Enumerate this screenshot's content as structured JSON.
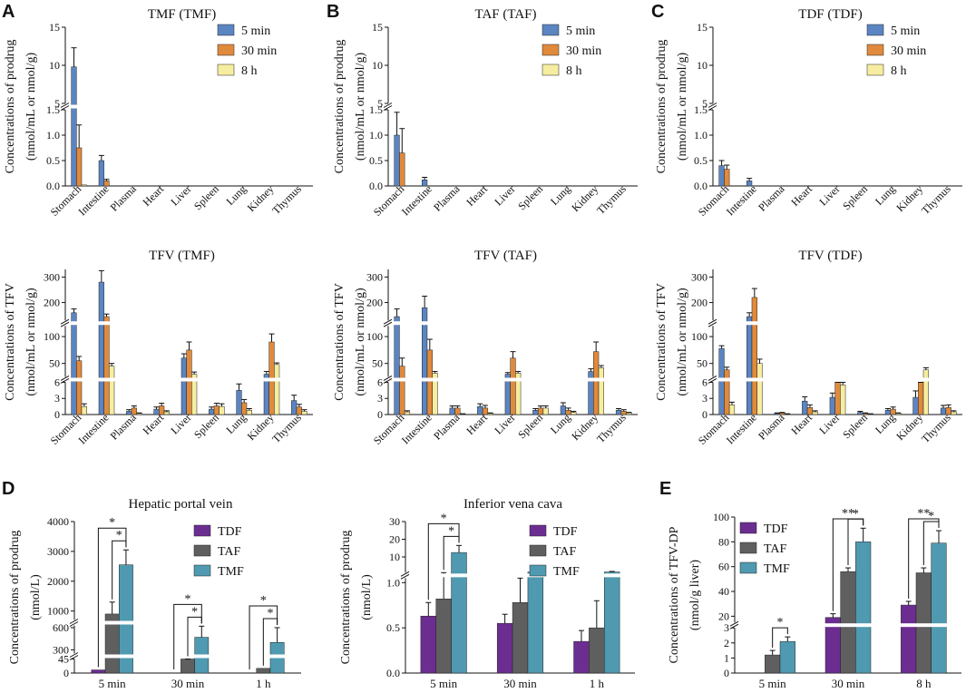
{
  "figure": {
    "panel_letters": [
      "A",
      "B",
      "C",
      "D",
      "E"
    ],
    "organ_categories": [
      "Stomach",
      "Intestine",
      "Plasma",
      "Heart",
      "Liver",
      "Spleen",
      "Lung",
      "Kidney",
      "Thymus"
    ],
    "time_legend": [
      "5 min",
      "30 min",
      "8 h"
    ],
    "drug_legend": [
      "TDF",
      "TAF",
      "TMF"
    ]
  },
  "chart_data": [
    {
      "id": "A1",
      "type": "bar",
      "title": "TMF (TMF)",
      "ylabel": [
        "Concentrations of prodrug",
        "(nmol/mL or nmol/g)"
      ],
      "y_segments": [
        [
          0,
          1.5
        ],
        [
          5,
          15
        ]
      ],
      "y_ticks": [
        [
          0,
          0.5,
          1.0,
          1.5
        ],
        [
          5,
          10,
          15
        ]
      ],
      "y_tick_labels": [
        [
          "0.0",
          "0.5",
          "1.0",
          "1.5"
        ],
        [
          "5",
          "10",
          "15"
        ]
      ],
      "categories": [
        "Stomach",
        "Intestine",
        "Plasma",
        "Heart",
        "Liver",
        "Spleen",
        "Lung",
        "Kidney",
        "Thymus"
      ],
      "series": [
        {
          "name": "5 min",
          "values": [
            9.8,
            0.5,
            0,
            0,
            0,
            0,
            0,
            0,
            0
          ],
          "errors": [
            2.5,
            0.1,
            0,
            0,
            0,
            0,
            0,
            0,
            0
          ]
        },
        {
          "name": "30 min",
          "values": [
            0.75,
            0.1,
            0,
            0,
            0,
            0,
            0,
            0,
            0
          ],
          "errors": [
            0.45,
            0.03,
            0,
            0,
            0,
            0,
            0,
            0,
            0
          ]
        },
        {
          "name": "8 h",
          "values": [
            0.02,
            0,
            0,
            0,
            0,
            0,
            0,
            0,
            0
          ],
          "errors": [
            0,
            0,
            0,
            0,
            0,
            0,
            0,
            0,
            0
          ]
        }
      ]
    },
    {
      "id": "B1",
      "type": "bar",
      "title": "TAF (TAF)",
      "ylabel": [
        "Concentrations of prodrug",
        "(nmol/mL or nmol/g)"
      ],
      "y_segments": [
        [
          0,
          1.5
        ],
        [
          5,
          15
        ]
      ],
      "y_ticks": [
        [
          0,
          0.5,
          1.0,
          1.5
        ],
        [
          5,
          10,
          15
        ]
      ],
      "y_tick_labels": [
        [
          "0.0",
          "0.5",
          "1.0",
          "1.5"
        ],
        [
          "5",
          "10",
          "15"
        ]
      ],
      "categories": [
        "Stomach",
        "Intestine",
        "Plasma",
        "Heart",
        "Liver",
        "Spleen",
        "Lung",
        "Kidney",
        "Thymus"
      ],
      "series": [
        {
          "name": "5 min",
          "values": [
            1.0,
            0.12,
            0,
            0,
            0,
            0,
            0,
            0,
            0
          ],
          "errors": [
            0.45,
            0.05,
            0,
            0,
            0,
            0,
            0,
            0,
            0
          ]
        },
        {
          "name": "30 min",
          "values": [
            0.65,
            0,
            0,
            0,
            0,
            0,
            0,
            0,
            0
          ],
          "errors": [
            0.48,
            0,
            0,
            0,
            0,
            0,
            0,
            0,
            0
          ]
        },
        {
          "name": "8 h",
          "values": [
            0,
            0,
            0,
            0,
            0,
            0,
            0,
            0,
            0
          ],
          "errors": [
            0,
            0,
            0,
            0,
            0,
            0,
            0,
            0,
            0
          ]
        }
      ]
    },
    {
      "id": "C1",
      "type": "bar",
      "title": "TDF (TDF)",
      "ylabel": [
        "Concentrations of prodrug",
        "(nmol/mL or nmol/g)"
      ],
      "y_segments": [
        [
          0,
          1.5
        ],
        [
          5,
          15
        ]
      ],
      "y_ticks": [
        [
          0,
          0.5,
          1.0,
          1.5
        ],
        [
          5,
          10,
          15
        ]
      ],
      "y_tick_labels": [
        [
          "0.0",
          "0.5",
          "1.0",
          "1.5"
        ],
        [
          "5",
          "10",
          "15"
        ]
      ],
      "categories": [
        "Stomach",
        "Intestine",
        "Plasma",
        "Heart",
        "Liver",
        "Spleen",
        "Lung",
        "Kidney",
        "Thymus"
      ],
      "series": [
        {
          "name": "5 min",
          "values": [
            0.4,
            0.1,
            0,
            0,
            0,
            0,
            0,
            0,
            0
          ],
          "errors": [
            0.1,
            0.05,
            0,
            0,
            0,
            0,
            0,
            0,
            0
          ]
        },
        {
          "name": "30 min",
          "values": [
            0.33,
            0,
            0,
            0,
            0,
            0,
            0,
            0,
            0
          ],
          "errors": [
            0.08,
            0,
            0,
            0,
            0,
            0,
            0,
            0,
            0
          ]
        },
        {
          "name": "8 h",
          "values": [
            0,
            0,
            0,
            0,
            0,
            0,
            0,
            0,
            0
          ],
          "errors": [
            0,
            0,
            0,
            0,
            0,
            0,
            0,
            0,
            0
          ]
        }
      ]
    },
    {
      "id": "A2",
      "type": "bar",
      "title": "TFV (TMF)",
      "ylabel": [
        "Concentrations of TFV",
        "(nmol/mL or nmol/g)"
      ],
      "y_segments": [
        [
          0,
          6
        ],
        [
          25,
          120
        ],
        [
          130,
          330
        ]
      ],
      "y_ticks": [
        [
          0,
          3,
          6
        ],
        [
          50,
          100
        ],
        [
          200,
          300
        ]
      ],
      "y_tick_labels": [
        [
          "0",
          "3",
          "6"
        ],
        [
          "50",
          "100"
        ],
        [
          "200",
          "300"
        ]
      ],
      "categories": [
        "Stomach",
        "Intestine",
        "Plasma",
        "Heart",
        "Liver",
        "Spleen",
        "Lung",
        "Kidney",
        "Thymus"
      ],
      "series": [
        {
          "name": "5 min",
          "values": [
            160,
            280,
            0.6,
            1.0,
            60,
            1.0,
            4.5,
            30,
            2.6
          ],
          "errors": [
            15,
            45,
            0.3,
            0.4,
            8,
            0.4,
            1.2,
            5,
            1.0
          ]
        },
        {
          "name": "30 min",
          "values": [
            55,
            145,
            1.2,
            1.6,
            75,
            1.6,
            2.2,
            90,
            1.4
          ],
          "errors": [
            8,
            10,
            0.4,
            0.5,
            15,
            0.5,
            0.6,
            15,
            0.5
          ]
        },
        {
          "name": "8 h",
          "values": [
            1.5,
            45,
            0.2,
            0.5,
            30,
            1.5,
            0.8,
            48,
            0.6
          ],
          "errors": [
            0.5,
            5,
            0.1,
            0.2,
            4,
            0.5,
            0.3,
            3,
            0.3
          ]
        }
      ]
    },
    {
      "id": "B2",
      "type": "bar",
      "title": "TFV (TAF)",
      "ylabel": [
        "Concentrations of TFV",
        "(nmol/mL or nmol/g)"
      ],
      "y_segments": [
        [
          0,
          6
        ],
        [
          25,
          120
        ],
        [
          130,
          330
        ]
      ],
      "y_ticks": [
        [
          0,
          3,
          6
        ],
        [
          50,
          100
        ],
        [
          200,
          300
        ]
      ],
      "y_tick_labels": [
        [
          "0",
          "3",
          "6"
        ],
        [
          "50",
          "100"
        ],
        [
          "200",
          "300"
        ]
      ],
      "categories": [
        "Stomach",
        "Intestine",
        "Plasma",
        "Heart",
        "Liver",
        "Spleen",
        "Lung",
        "Kidney",
        "Thymus"
      ],
      "series": [
        {
          "name": "5 min",
          "values": [
            145,
            180,
            1.2,
            1.5,
            30,
            0.8,
            1.6,
            35,
            0.8
          ],
          "errors": [
            30,
            45,
            0.4,
            0.5,
            3,
            0.3,
            0.6,
            5,
            0.3
          ]
        },
        {
          "name": "30 min",
          "values": [
            45,
            75,
            1.2,
            1.2,
            60,
            1.2,
            0.8,
            72,
            0.6
          ],
          "errors": [
            15,
            20,
            0.4,
            0.5,
            12,
            0.4,
            0.4,
            18,
            0.3
          ]
        },
        {
          "name": "8 h",
          "values": [
            0.5,
            32,
            0.1,
            0.2,
            32,
            1.2,
            0.4,
            42,
            0.3
          ],
          "errors": [
            0.2,
            3,
            0.05,
            0.1,
            3,
            0.4,
            0.2,
            4,
            0.1
          ]
        }
      ]
    },
    {
      "id": "C2",
      "type": "bar",
      "title": "TFV (TDF)",
      "ylabel": [
        "Concentrations of TFV",
        "(nmol/mL or nmol/g)"
      ],
      "y_segments": [
        [
          0,
          6
        ],
        [
          25,
          120
        ],
        [
          130,
          330
        ]
      ],
      "y_ticks": [
        [
          0,
          3,
          6
        ],
        [
          50,
          100
        ],
        [
          200,
          300
        ]
      ],
      "y_tick_labels": [
        [
          "0",
          "3",
          "6"
        ],
        [
          "50",
          "100"
        ],
        [
          "200",
          "300"
        ]
      ],
      "categories": [
        "Stomach",
        "Intestine",
        "Plasma",
        "Heart",
        "Liver",
        "Spleen",
        "Lung",
        "Kidney",
        "Thymus"
      ],
      "series": [
        {
          "name": "5 min",
          "values": [
            78,
            145,
            0.2,
            2.5,
            3.2,
            0.4,
            0.8,
            3.2,
            1.2
          ],
          "errors": [
            5,
            15,
            0.1,
            0.8,
            0.8,
            0.2,
            0.3,
            1.2,
            0.5
          ]
        },
        {
          "name": "30 min",
          "values": [
            38,
            220,
            0.3,
            1.3,
            6.5,
            0.2,
            1.0,
            20,
            1.3
          ],
          "errors": [
            5,
            35,
            0.1,
            0.5,
            0.8,
            0.1,
            0.4,
            4,
            0.5
          ]
        },
        {
          "name": "8 h",
          "values": [
            1.8,
            50,
            0.1,
            0.5,
            5.5,
            0.1,
            0.2,
            38,
            0.5
          ],
          "errors": [
            0.5,
            8,
            0.05,
            0.2,
            1.2,
            0.05,
            0.1,
            4,
            0.2
          ]
        }
      ]
    },
    {
      "id": "D1",
      "type": "bar",
      "title": "Hepatic portal vein",
      "ylabel": [
        "Concentrations of prodrug",
        "(nmol/L)"
      ],
      "y_segments": [
        [
          0,
          45
        ],
        [
          250,
          630
        ],
        [
          700,
          4000
        ]
      ],
      "y_ticks": [
        [
          0,
          45
        ],
        [
          300,
          600
        ],
        [
          1000,
          2000,
          3000,
          4000
        ]
      ],
      "y_tick_labels": [
        [
          "0",
          "45"
        ],
        [
          "300",
          "600"
        ],
        [
          "1000",
          "2000",
          "3000",
          "4000"
        ]
      ],
      "categories": [
        "5 min",
        "30 min",
        "1 h"
      ],
      "series": [
        {
          "name": "TDF",
          "values": [
            10,
            0,
            0
          ],
          "errors": [
            0,
            0,
            0
          ]
        },
        {
          "name": "TAF",
          "values": [
            900,
            120,
            15
          ],
          "errors": [
            400,
            50,
            0
          ]
        },
        {
          "name": "TMF",
          "values": [
            2550,
            470,
            400
          ],
          "errors": [
            500,
            150,
            200
          ]
        }
      ],
      "significance": [
        {
          "category": "5 min",
          "from": "TDF",
          "to": "TMF",
          "label": "*"
        },
        {
          "category": "5 min",
          "from": "TAF",
          "to": "TMF",
          "label": "*"
        },
        {
          "category": "30 min",
          "from": "TDF",
          "to": "TMF",
          "label": "*"
        },
        {
          "category": "30 min",
          "from": "TAF",
          "to": "TMF",
          "label": "*"
        },
        {
          "category": "1 h",
          "from": "TDF",
          "to": "TMF",
          "label": "*"
        },
        {
          "category": "1 h",
          "from": "TAF",
          "to": "TMF",
          "label": "*"
        }
      ]
    },
    {
      "id": "D2",
      "type": "bar",
      "title": "Inferior vena cava",
      "ylabel": [
        "Concentrations of prodrug",
        "(nmol/L)"
      ],
      "y_segments": [
        [
          0,
          1.05
        ],
        [
          1.1,
          30
        ]
      ],
      "y_ticks": [
        [
          0,
          0.5,
          1.0
        ],
        [
          10,
          20,
          30
        ]
      ],
      "y_tick_labels": [
        [
          "0.0",
          "0.5",
          "1.0"
        ],
        [
          "10",
          "20",
          "30"
        ]
      ],
      "categories": [
        "5 min",
        "30 min",
        "1 h"
      ],
      "series": [
        {
          "name": "TDF",
          "values": [
            0.63,
            0.55,
            0.35
          ],
          "errors": [
            0.15,
            0.1,
            0.12
          ]
        },
        {
          "name": "TAF",
          "values": [
            0.82,
            0.78,
            0.5
          ],
          "errors": [
            0.3,
            0.3,
            0.3
          ]
        },
        {
          "name": "TMF",
          "values": [
            12.5,
            1.5,
            1.5
          ],
          "errors": [
            4,
            0.5,
            0.3
          ]
        }
      ],
      "significance": [
        {
          "category": "5 min",
          "from": "TDF",
          "to": "TMF",
          "label": "*"
        },
        {
          "category": "5 min",
          "from": "TAF",
          "to": "TMF",
          "label": "*"
        }
      ]
    },
    {
      "id": "E",
      "type": "bar",
      "title": "",
      "ylabel": [
        "Concentrations of TFV-DP",
        "(nmol/g liver)"
      ],
      "y_segments": [
        [
          0,
          3
        ],
        [
          15,
          100
        ]
      ],
      "y_ticks": [
        [
          0,
          1,
          2,
          3
        ],
        [
          20,
          40,
          60,
          80,
          100
        ]
      ],
      "y_tick_labels": [
        [
          "0",
          "1",
          "2",
          "3"
        ],
        [
          "20",
          "40",
          "60",
          "80",
          "100"
        ]
      ],
      "categories": [
        "5 min",
        "30 min",
        "8 h"
      ],
      "series": [
        {
          "name": "TDF",
          "values": [
            0,
            19,
            29
          ],
          "errors": [
            0,
            3,
            3
          ]
        },
        {
          "name": "TAF",
          "values": [
            1.2,
            56,
            55
          ],
          "errors": [
            0.3,
            3,
            4
          ]
        },
        {
          "name": "TMF",
          "values": [
            2.1,
            80,
            79
          ],
          "errors": [
            0.3,
            11,
            10
          ]
        }
      ],
      "significance": [
        {
          "category": "5 min",
          "from": "TAF",
          "to": "TMF",
          "label": "*"
        },
        {
          "category": "30 min",
          "from": "TDF",
          "to": "TMF",
          "label": "**"
        },
        {
          "category": "30 min",
          "from": "TAF",
          "to": "TMF",
          "label": "*"
        },
        {
          "category": "8 h",
          "from": "TDF",
          "to": "TMF",
          "label": "**"
        },
        {
          "category": "8 h",
          "from": "TAF",
          "to": "TMF",
          "label": "*"
        }
      ]
    }
  ],
  "colors": {
    "time": [
      "#5b85c2",
      "#e08a3c",
      "#f6eda0"
    ],
    "drug": [
      "#6c2d91",
      "#5f5f5f",
      "#4f9ab0"
    ]
  }
}
